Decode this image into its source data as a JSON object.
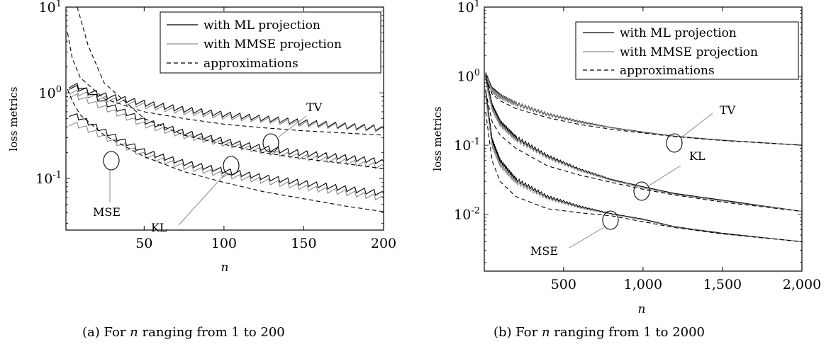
{
  "captions": {
    "a": "(a) For n ranging from 1 to 200",
    "b": "(b) For n ranging from 1 to 2000"
  },
  "legend_styles": {
    "ml": {
      "color": "#000000",
      "dash": "none"
    },
    "mmse": {
      "color": "#8c8c8c",
      "dash": "none"
    },
    "approx": {
      "color": "#000000",
      "dash": "dashed"
    }
  },
  "chart_data": [
    {
      "type": "line",
      "panel": "a",
      "xlabel": "n",
      "ylabel": "loss metrics",
      "xlim": [
        1,
        200
      ],
      "ylim": [
        0.025,
        10
      ],
      "yscale": "log",
      "grid": false,
      "legend_position": "top-right",
      "x_ticks": [
        50,
        100,
        150,
        200
      ],
      "x_tick_labels": [
        "50",
        "100",
        "150",
        "200"
      ],
      "y_ticks": [
        0.1,
        1,
        10
      ],
      "y_tick_labels": [
        "10^-1",
        "10^0",
        "10^1"
      ],
      "legend": [
        "with ML projection",
        "with MMSE projection",
        "approximations"
      ],
      "series": [
        {
          "name": "with ML projection",
          "metric": "TV",
          "x": [
            3,
            10,
            25,
            50,
            75,
            100,
            125,
            150,
            175,
            200
          ],
          "y": [
            1.2,
            1.13,
            0.95,
            0.77,
            0.65,
            0.57,
            0.51,
            0.46,
            0.42,
            0.39
          ]
        },
        {
          "name": "with MMSE projection",
          "metric": "TV",
          "x": [
            3,
            10,
            25,
            50,
            75,
            100,
            125,
            150,
            175,
            200
          ],
          "y": [
            1.05,
            1.0,
            0.87,
            0.72,
            0.61,
            0.54,
            0.49,
            0.44,
            0.41,
            0.38
          ]
        },
        {
          "name": "approximations",
          "metric": "TV",
          "x": [
            2,
            5,
            10,
            25,
            50,
            75,
            100,
            125,
            150,
            175,
            200
          ],
          "y": [
            5.0,
            2.5,
            1.5,
            0.85,
            0.6,
            0.5,
            0.43,
            0.39,
            0.36,
            0.34,
            0.32
          ]
        },
        {
          "name": "with ML projection",
          "metric": "KL",
          "x": [
            3,
            10,
            25,
            50,
            75,
            100,
            125,
            150,
            175,
            200
          ],
          "y": [
            1.25,
            1.2,
            0.78,
            0.48,
            0.35,
            0.28,
            0.23,
            0.2,
            0.18,
            0.16
          ]
        },
        {
          "name": "with MMSE projection",
          "metric": "KL",
          "x": [
            3,
            10,
            25,
            50,
            75,
            100,
            125,
            150,
            175,
            200
          ],
          "y": [
            0.95,
            0.9,
            0.68,
            0.43,
            0.32,
            0.26,
            0.21,
            0.18,
            0.16,
            0.14
          ]
        },
        {
          "name": "approximations",
          "metric": "KL",
          "x": [
            8,
            10,
            15,
            25,
            50,
            75,
            100,
            125,
            150,
            175,
            200
          ],
          "y": [
            10,
            7.5,
            3.5,
            1.3,
            0.5,
            0.32,
            0.25,
            0.2,
            0.17,
            0.15,
            0.13
          ]
        },
        {
          "name": "with ML projection",
          "metric": "MSE",
          "x": [
            3,
            10,
            25,
            50,
            75,
            100,
            125,
            150,
            175,
            200
          ],
          "y": [
            0.58,
            0.52,
            0.36,
            0.21,
            0.155,
            0.125,
            0.105,
            0.09,
            0.078,
            0.068
          ]
        },
        {
          "name": "with MMSE projection",
          "metric": "MSE",
          "x": [
            3,
            10,
            25,
            50,
            75,
            100,
            125,
            150,
            175,
            200
          ],
          "y": [
            0.45,
            0.42,
            0.31,
            0.19,
            0.14,
            0.112,
            0.095,
            0.08,
            0.07,
            0.06
          ]
        },
        {
          "name": "approximations",
          "metric": "MSE",
          "x": [
            2,
            5,
            10,
            25,
            50,
            75,
            100,
            125,
            150,
            175,
            200
          ],
          "y": [
            1.1,
            0.8,
            0.55,
            0.32,
            0.18,
            0.12,
            0.09,
            0.07,
            0.058,
            0.048,
            0.041
          ]
        }
      ],
      "annotations": [
        {
          "text": "TV",
          "x": 130,
          "y": 0.46
        },
        {
          "text": "KL",
          "x": 105,
          "y": 0.27
        },
        {
          "text": "MSE",
          "x": 30,
          "y": 0.3
        }
      ]
    },
    {
      "type": "line",
      "panel": "b",
      "xlabel": "n",
      "ylabel": "loss metrics",
      "xlim": [
        1,
        2000
      ],
      "ylim": [
        0.0015,
        10
      ],
      "yscale": "log",
      "grid": false,
      "legend_position": "top-right",
      "x_ticks": [
        500,
        1000,
        1500,
        2000
      ],
      "x_tick_labels": [
        "500",
        "1,000",
        "1,500",
        "2,000"
      ],
      "y_ticks": [
        0.01,
        0.1,
        1,
        10
      ],
      "y_tick_labels": [
        "10^-2",
        "10^-1",
        "10^0",
        "10^1"
      ],
      "legend": [
        "with ML projection",
        "with MMSE projection",
        "approximations"
      ],
      "series": [
        {
          "name": "with ML projection",
          "metric": "TV",
          "x": [
            10,
            50,
            100,
            200,
            400,
            600,
            800,
            1000,
            1200,
            1500,
            2000
          ],
          "y": [
            1.05,
            0.65,
            0.52,
            0.4,
            0.28,
            0.22,
            0.18,
            0.155,
            0.135,
            0.118,
            0.1
          ]
        },
        {
          "name": "with MMSE projection",
          "metric": "TV",
          "x": [
            10,
            50,
            100,
            200,
            400,
            600,
            800,
            1000,
            1200,
            1500,
            2000
          ],
          "y": [
            1.0,
            0.62,
            0.5,
            0.39,
            0.275,
            0.215,
            0.178,
            0.153,
            0.134,
            0.117,
            0.1
          ]
        },
        {
          "name": "approximations",
          "metric": "TV",
          "x": [
            10,
            50,
            100,
            200,
            400,
            600,
            800,
            1000,
            1200,
            1500,
            2000
          ],
          "y": [
            0.95,
            0.55,
            0.44,
            0.34,
            0.25,
            0.2,
            0.17,
            0.15,
            0.133,
            0.117,
            0.1
          ]
        },
        {
          "name": "with ML projection",
          "metric": "KL",
          "x": [
            10,
            50,
            100,
            200,
            400,
            600,
            800,
            1000,
            1200,
            1500,
            2000
          ],
          "y": [
            1.0,
            0.38,
            0.22,
            0.13,
            0.07,
            0.045,
            0.032,
            0.025,
            0.02,
            0.016,
            0.011
          ]
        },
        {
          "name": "with MMSE projection",
          "metric": "KL",
          "x": [
            10,
            50,
            100,
            200,
            400,
            600,
            800,
            1000,
            1200,
            1500,
            2000
          ],
          "y": [
            0.85,
            0.34,
            0.2,
            0.12,
            0.066,
            0.043,
            0.031,
            0.024,
            0.0195,
            0.0155,
            0.011
          ]
        },
        {
          "name": "approximations",
          "metric": "KL",
          "x": [
            10,
            50,
            100,
            200,
            400,
            600,
            800,
            1000,
            1200,
            1500,
            2000
          ],
          "y": [
            0.6,
            0.22,
            0.14,
            0.09,
            0.05,
            0.037,
            0.029,
            0.023,
            0.019,
            0.015,
            0.011
          ]
        },
        {
          "name": "with ML projection",
          "metric": "MSE",
          "x": [
            10,
            50,
            100,
            200,
            400,
            600,
            800,
            1000,
            1200,
            1500,
            2000
          ],
          "y": [
            0.6,
            0.12,
            0.06,
            0.032,
            0.018,
            0.013,
            0.0102,
            0.0085,
            0.0066,
            0.0053,
            0.004
          ]
        },
        {
          "name": "with MMSE projection",
          "metric": "MSE",
          "x": [
            10,
            50,
            100,
            200,
            400,
            600,
            800,
            1000,
            1200,
            1500,
            2000
          ],
          "y": [
            0.5,
            0.1,
            0.052,
            0.029,
            0.017,
            0.0125,
            0.01,
            0.0083,
            0.0065,
            0.0052,
            0.004
          ]
        },
        {
          "name": "approximations",
          "metric": "MSE",
          "x": [
            10,
            50,
            100,
            200,
            400,
            600,
            800,
            1000,
            1200,
            1500,
            2000
          ],
          "y": [
            0.3,
            0.06,
            0.03,
            0.018,
            0.012,
            0.0105,
            0.0095,
            0.0078,
            0.0064,
            0.0052,
            0.004
          ]
        }
      ],
      "annotations": [
        {
          "text": "TV",
          "x": 1200,
          "y": 0.125
        },
        {
          "text": "KL",
          "x": 1000,
          "y": 0.025
        },
        {
          "text": "MSE",
          "x": 800,
          "y": 0.0103
        }
      ]
    }
  ]
}
